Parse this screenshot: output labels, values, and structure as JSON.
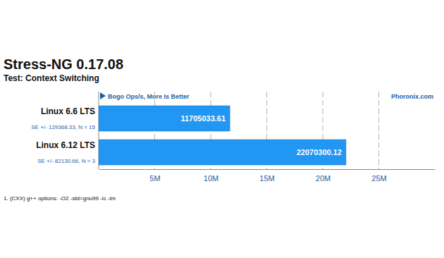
{
  "chart_data": {
    "type": "bar",
    "orientation": "horizontal",
    "title": "Stress-NG 0.17.08",
    "subtitle": "Test: Context Switching",
    "x_label": "Bogo Ops/s, More Is Better",
    "source": "Phoronix.com",
    "footnote": "1. (CXX) g++ options: -O2 -std=gnu99 -lc -lm",
    "categories": [
      "Linux 6.6 LTS",
      "Linux 6.12 LTS"
    ],
    "annotations": [
      "SE +/- 129368.33, N = 15",
      "SE +/- 82130.66, N = 3"
    ],
    "values": [
      11705033.61,
      22070300.12
    ],
    "color": "#2196f3",
    "data_labels": true,
    "grid": true,
    "xlim": [
      0,
      30000000
    ],
    "xticks": [
      {
        "value": 5000000,
        "label": "5M"
      },
      {
        "value": 10000000,
        "label": "10M"
      },
      {
        "value": 15000000,
        "label": "15M"
      },
      {
        "value": 20000000,
        "label": "20M"
      },
      {
        "value": 25000000,
        "label": "25M"
      }
    ]
  }
}
